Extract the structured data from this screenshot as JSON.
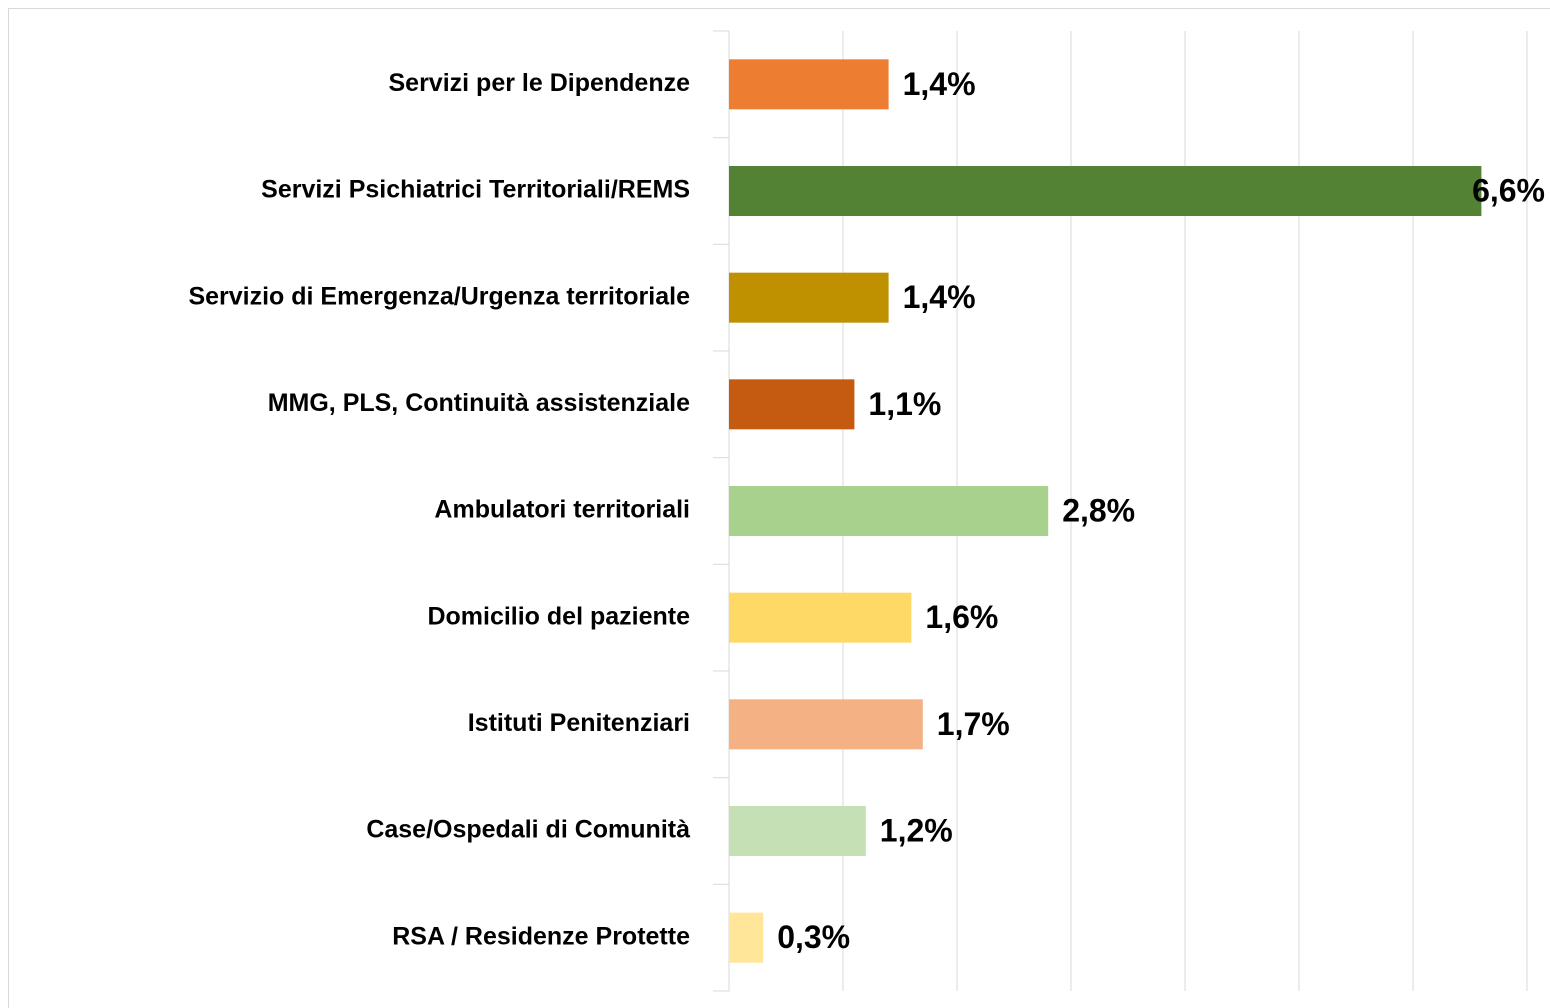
{
  "chart_data": {
    "type": "bar",
    "orientation": "horizontal",
    "categories": [
      "Servizi per le Dipendenze",
      "Servizi Psichiatrici Territoriali/REMS",
      "Servizio di Emergenza/Urgenza territoriale",
      "MMG, PLS, Continuità assistenziale",
      "Ambulatori territoriali",
      "Domicilio del paziente",
      "Istituti Penitenziari",
      "Case/Ospedali di Comunità",
      "RSA / Residenze Protette"
    ],
    "values": [
      1.4,
      6.6,
      1.4,
      1.1,
      2.8,
      1.6,
      1.7,
      1.2,
      0.3
    ],
    "value_labels": [
      "1,4%",
      "6,6%",
      "1,4%",
      "1,1%",
      "2,8%",
      "1,6%",
      "1,7%",
      "1,2%",
      "0,3%"
    ],
    "colors": [
      "#ed7d31",
      "#548235",
      "#bf9000",
      "#c55a11",
      "#a9d18e",
      "#ffd966",
      "#f4b183",
      "#c5e0b4",
      "#ffe699"
    ],
    "xlim": [
      0,
      7
    ],
    "xticks": [
      0,
      1,
      2,
      3,
      4,
      5,
      6,
      7
    ],
    "grid": true
  }
}
